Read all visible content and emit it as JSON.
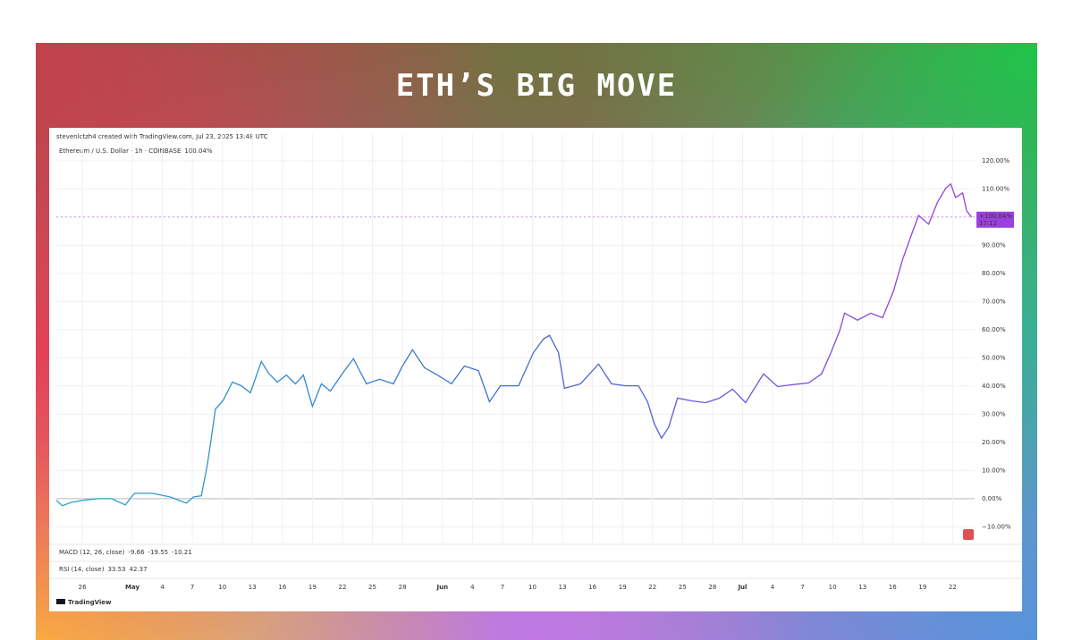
{
  "title": "ETH’S BIG MOVE",
  "chart_data": {
    "type": "line",
    "attribution": "stevenlctzh4 created with TradingView.com, Jul 23, 2025 13:48 UTC",
    "symbol": "Ethereum / U.S. Dollar · 1h · COINBASE",
    "current": {
      "value": 100.04,
      "legend_label": "100.04%",
      "tag_label": "+100.04%",
      "tag_time": "17:12",
      "color": "#9c3fe0"
    },
    "x": [
      -2.6,
      -2.0,
      -1.1,
      0,
      1.6,
      2.9,
      4.3,
      5.2,
      7.0,
      8.8,
      10.4,
      11.1,
      11.9,
      12.5,
      12.9,
      13.3,
      14.1,
      15.0,
      15.9,
      16.8,
      17.9,
      18.6,
      19.5,
      20.4,
      21.3,
      22.1,
      23.0,
      23.9,
      24.8,
      26.2,
      27.1,
      28.4,
      29.7,
      31.1,
      32.0,
      33.0,
      34.2,
      35.5,
      36.9,
      38.2,
      39.6,
      40.7,
      41.8,
      43.6,
      45.1,
      46.1,
      46.7,
      47.6,
      48.2,
      49.8,
      51.6,
      52.9,
      54.3,
      55.6,
      56.5,
      57.2,
      57.9,
      58.6,
      59.5,
      61.0,
      62.3,
      63.7,
      65.0,
      66.3,
      68.1,
      69.5,
      70.8,
      72.6,
      73.9,
      74.8,
      75.7,
      76.2,
      77.5,
      78.8,
      80.0,
      81.1,
      82.0,
      82.9,
      83.6,
      84.6,
      85.5,
      86.3,
      86.8,
      87.3,
      88.0,
      88.4,
      88.9
    ],
    "series": [
      {
        "name": "Ethereum / U.S. Dollar",
        "colors": [
          "#2aa9c6",
          "#3f6cd2",
          "#9c3fe0"
        ],
        "values": [
          -0.6,
          -2.5,
          -1.3,
          -0.6,
          0,
          0,
          -2.2,
          1.9,
          1.9,
          0.6,
          -1.6,
          0.6,
          1.0,
          12.1,
          21.7,
          31.8,
          35.0,
          41.4,
          40.1,
          37.6,
          48.7,
          44.6,
          41.4,
          43.9,
          40.8,
          43.9,
          32.8,
          40.8,
          38.2,
          45.5,
          49.7,
          40.8,
          42.4,
          40.8,
          47.1,
          52.9,
          46.5,
          43.9,
          40.8,
          47.1,
          45.5,
          34.4,
          40.1,
          40.1,
          51.9,
          56.7,
          58.0,
          51.9,
          39.2,
          40.8,
          47.8,
          40.8,
          40.1,
          40.1,
          34.4,
          26.4,
          21.5,
          25.3,
          35.7,
          34.7,
          34.1,
          35.7,
          38.9,
          34.1,
          44.3,
          39.8,
          40.4,
          41.1,
          44.3,
          51.6,
          59.6,
          65.9,
          63.4,
          65.9,
          64.3,
          73.9,
          85.0,
          93.9,
          100.6,
          97.5,
          105.4,
          110.2,
          111.8,
          107.0,
          108.6,
          102.2,
          100.0
        ]
      }
    ],
    "xlim": [
      -2.6,
      89.2
    ],
    "ylim": [
      -15.6,
      129.5
    ],
    "xticks": [
      {
        "value": 0,
        "label": "26"
      },
      {
        "value": 5,
        "label": "May"
      },
      {
        "value": 8,
        "label": "4"
      },
      {
        "value": 11,
        "label": "7"
      },
      {
        "value": 14,
        "label": "10"
      },
      {
        "value": 17,
        "label": "13"
      },
      {
        "value": 20,
        "label": "16"
      },
      {
        "value": 23,
        "label": "19"
      },
      {
        "value": 26,
        "label": "22"
      },
      {
        "value": 29,
        "label": "25"
      },
      {
        "value": 32,
        "label": "28"
      },
      {
        "value": 36,
        "label": "Jun"
      },
      {
        "value": 39,
        "label": "4"
      },
      {
        "value": 42,
        "label": "7"
      },
      {
        "value": 45,
        "label": "10"
      },
      {
        "value": 48,
        "label": "13"
      },
      {
        "value": 51,
        "label": "16"
      },
      {
        "value": 54,
        "label": "19"
      },
      {
        "value": 57,
        "label": "22"
      },
      {
        "value": 60,
        "label": "25"
      },
      {
        "value": 63,
        "label": "28"
      },
      {
        "value": 66,
        "label": "Jul"
      },
      {
        "value": 69,
        "label": "4"
      },
      {
        "value": 72,
        "label": "7"
      },
      {
        "value": 75,
        "label": "10"
      },
      {
        "value": 78,
        "label": "13"
      },
      {
        "value": 81,
        "label": "16"
      },
      {
        "value": 84,
        "label": "19"
      },
      {
        "value": 87,
        "label": "22"
      }
    ],
    "yticks": [
      {
        "value": -10,
        "label": "−10.00%"
      },
      {
        "value": 0,
        "label": "0.00%"
      },
      {
        "value": 10,
        "label": "10.00%"
      },
      {
        "value": 20,
        "label": "20.00%"
      },
      {
        "value": 30,
        "label": "30.00%"
      },
      {
        "value": 40,
        "label": "40.00%"
      },
      {
        "value": 50,
        "label": "50.00%"
      },
      {
        "value": 60,
        "label": "60.00%"
      },
      {
        "value": 70,
        "label": "70.00%"
      },
      {
        "value": 80,
        "label": "80.00%"
      },
      {
        "value": 90,
        "label": "90.00%"
      },
      {
        "value": 100,
        "label": "100.00%"
      },
      {
        "value": 110,
        "label": "110.00%"
      },
      {
        "value": 120,
        "label": "120.00%"
      }
    ],
    "grid": true,
    "indicators": [
      {
        "name": "MACD (12, 26, close)",
        "values": [
          "-9.66",
          "-19.55",
          "-10.21"
        ],
        "colors": [
          "#e2574c",
          "#3f6cd2",
          "#f0902a"
        ]
      },
      {
        "name": "RSI (14, close)",
        "values": [
          "33.53",
          "42.37"
        ],
        "colors": [
          "#9c3fe0",
          "#e0b020"
        ]
      }
    ],
    "logo": "TradingView"
  }
}
